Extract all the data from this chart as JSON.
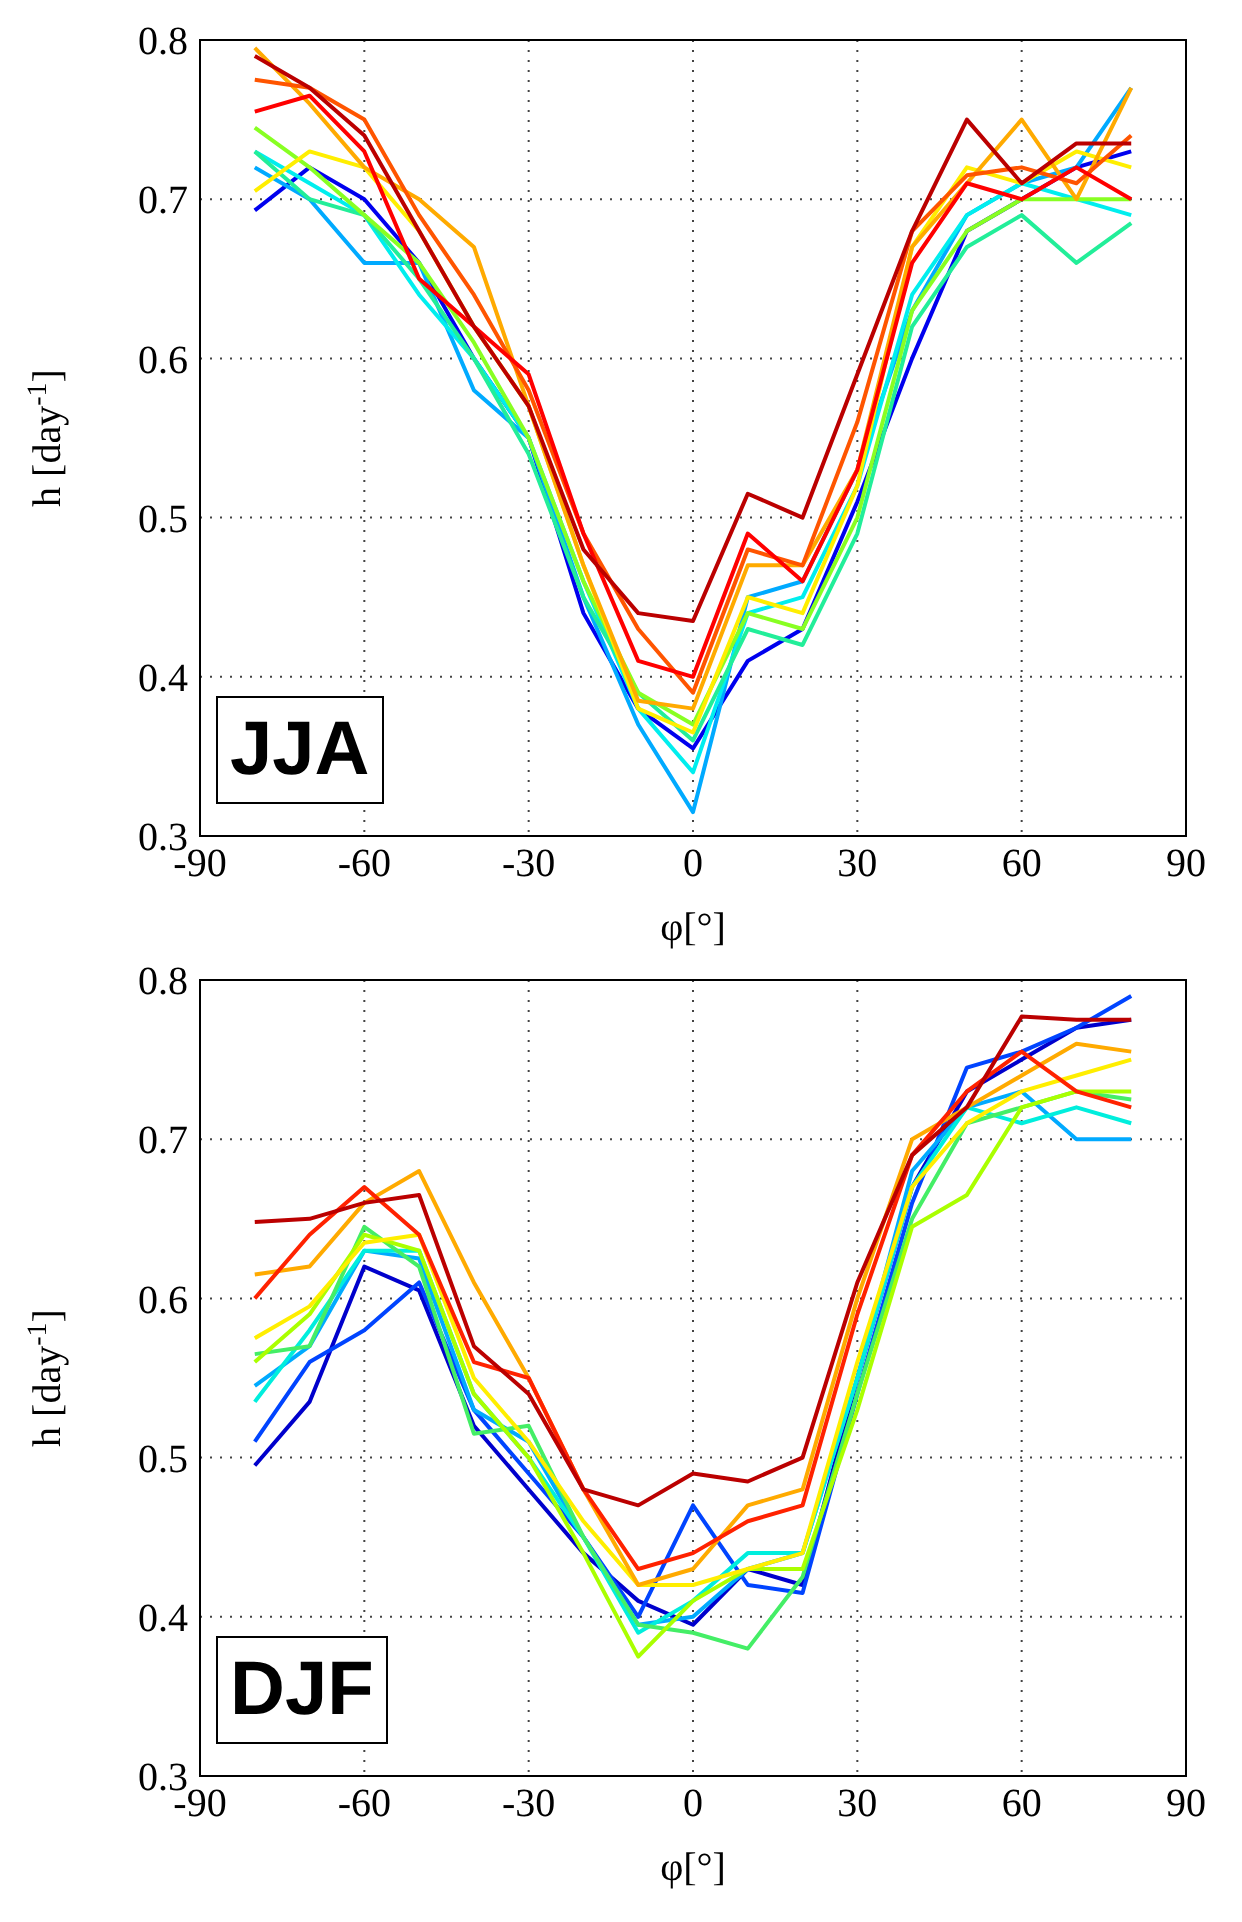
{
  "chart_data": [
    {
      "type": "line",
      "xlabel": "φ[°]",
      "ylabel": "h [day$^{-1}$]",
      "annotations": [
        "JJA"
      ],
      "grid": true,
      "xlim": [
        -90,
        90
      ],
      "xticks": [
        -90,
        -60,
        -30,
        0,
        30,
        60,
        90
      ],
      "ylim": [
        0.3,
        0.8
      ],
      "yticks": [
        0.3,
        0.4,
        0.5,
        0.6,
        0.7,
        0.8
      ],
      "x": [
        -80,
        -70,
        -60,
        -50,
        -40,
        -30,
        -20,
        -10,
        0,
        10,
        20,
        30,
        40,
        50,
        60,
        70,
        80
      ],
      "series": [
        {
          "color": "#0000ee",
          "values": [
            0.693,
            0.72,
            0.7,
            0.66,
            0.6,
            0.55,
            0.44,
            0.38,
            0.355,
            0.41,
            0.43,
            0.51,
            0.6,
            0.68,
            0.7,
            0.72,
            0.73
          ]
        },
        {
          "color": "#00aaff",
          "values": [
            0.72,
            0.7,
            0.66,
            0.66,
            0.58,
            0.55,
            0.45,
            0.37,
            0.315,
            0.45,
            0.46,
            0.53,
            0.63,
            0.69,
            0.71,
            0.72,
            0.77
          ]
        },
        {
          "color": "#00eeee",
          "values": [
            0.73,
            0.71,
            0.69,
            0.64,
            0.6,
            0.55,
            0.46,
            0.38,
            0.34,
            0.44,
            0.45,
            0.52,
            0.64,
            0.69,
            0.71,
            0.7,
            0.69
          ]
        },
        {
          "color": "#22ee99",
          "values": [
            0.73,
            0.7,
            0.69,
            0.65,
            0.6,
            0.54,
            0.45,
            0.39,
            0.36,
            0.43,
            0.42,
            0.49,
            0.62,
            0.67,
            0.69,
            0.66,
            0.685
          ]
        },
        {
          "color": "#88ff22",
          "values": [
            0.745,
            0.72,
            0.69,
            0.66,
            0.61,
            0.55,
            0.46,
            0.39,
            0.37,
            0.44,
            0.43,
            0.5,
            0.63,
            0.68,
            0.7,
            0.7,
            0.7
          ]
        },
        {
          "color": "#ffee00",
          "values": [
            0.705,
            0.73,
            0.72,
            0.68,
            0.62,
            0.57,
            0.47,
            0.38,
            0.365,
            0.45,
            0.44,
            0.52,
            0.67,
            0.72,
            0.71,
            0.73,
            0.72
          ]
        },
        {
          "color": "#ffaa00",
          "values": [
            0.795,
            0.76,
            0.72,
            0.7,
            0.67,
            0.57,
            0.47,
            0.385,
            0.38,
            0.47,
            0.47,
            0.53,
            0.67,
            0.71,
            0.75,
            0.7,
            0.77
          ]
        },
        {
          "color": "#ff5500",
          "values": [
            0.775,
            0.77,
            0.75,
            0.69,
            0.64,
            0.58,
            0.49,
            0.43,
            0.39,
            0.48,
            0.47,
            0.56,
            0.68,
            0.715,
            0.72,
            0.71,
            0.74
          ]
        },
        {
          "color": "#ff0000",
          "values": [
            0.755,
            0.765,
            0.73,
            0.65,
            0.62,
            0.59,
            0.49,
            0.41,
            0.4,
            0.49,
            0.46,
            0.53,
            0.66,
            0.71,
            0.7,
            0.72,
            0.7
          ]
        },
        {
          "color": "#bb0000",
          "values": [
            0.79,
            0.77,
            0.74,
            0.68,
            0.62,
            0.57,
            0.48,
            0.44,
            0.435,
            0.515,
            0.5,
            0.59,
            0.68,
            0.75,
            0.71,
            0.735,
            0.735
          ]
        }
      ]
    },
    {
      "type": "line",
      "xlabel": "φ[°]",
      "ylabel": "h [day$^{-1}$]",
      "annotations": [
        "DJF"
      ],
      "grid": true,
      "xlim": [
        -90,
        90
      ],
      "xticks": [
        -90,
        -60,
        -30,
        0,
        30,
        60,
        90
      ],
      "ylim": [
        0.3,
        0.8
      ],
      "yticks": [
        0.3,
        0.4,
        0.5,
        0.6,
        0.7,
        0.8
      ],
      "x": [
        -80,
        -70,
        -60,
        -50,
        -40,
        -30,
        -20,
        -10,
        0,
        10,
        20,
        30,
        40,
        50,
        60,
        70,
        80
      ],
      "series": [
        {
          "color": "#0000cc",
          "values": [
            0.495,
            0.535,
            0.62,
            0.605,
            0.52,
            0.48,
            0.44,
            0.41,
            0.395,
            0.43,
            0.42,
            0.55,
            0.67,
            0.73,
            0.75,
            0.77,
            0.775
          ]
        },
        {
          "color": "#0044ff",
          "values": [
            0.51,
            0.56,
            0.58,
            0.61,
            0.53,
            0.49,
            0.45,
            0.4,
            0.47,
            0.42,
            0.415,
            0.54,
            0.66,
            0.745,
            0.755,
            0.77,
            0.79
          ]
        },
        {
          "color": "#00aaff",
          "values": [
            0.545,
            0.57,
            0.63,
            0.625,
            0.53,
            0.51,
            0.45,
            0.395,
            0.4,
            0.43,
            0.44,
            0.55,
            0.68,
            0.72,
            0.73,
            0.7,
            0.7
          ]
        },
        {
          "color": "#00eedd",
          "values": [
            0.535,
            0.58,
            0.63,
            0.63,
            0.54,
            0.5,
            0.45,
            0.39,
            0.41,
            0.44,
            0.44,
            0.55,
            0.67,
            0.72,
            0.71,
            0.72,
            0.71
          ]
        },
        {
          "color": "#44ee66",
          "values": [
            0.565,
            0.57,
            0.645,
            0.62,
            0.515,
            0.52,
            0.45,
            0.395,
            0.39,
            0.38,
            0.425,
            0.54,
            0.65,
            0.71,
            0.72,
            0.73,
            0.725
          ]
        },
        {
          "color": "#aaff00",
          "values": [
            0.56,
            0.59,
            0.64,
            0.63,
            0.54,
            0.5,
            0.44,
            0.375,
            0.41,
            0.43,
            0.43,
            0.53,
            0.645,
            0.665,
            0.72,
            0.73,
            0.73
          ]
        },
        {
          "color": "#ffee00",
          "values": [
            0.575,
            0.595,
            0.635,
            0.64,
            0.55,
            0.51,
            0.46,
            0.42,
            0.42,
            0.43,
            0.44,
            0.56,
            0.67,
            0.71,
            0.73,
            0.74,
            0.75
          ]
        },
        {
          "color": "#ffaa00",
          "values": [
            0.615,
            0.62,
            0.66,
            0.68,
            0.61,
            0.55,
            0.48,
            0.42,
            0.43,
            0.47,
            0.48,
            0.6,
            0.7,
            0.72,
            0.74,
            0.76,
            0.755
          ]
        },
        {
          "color": "#ff2200",
          "values": [
            0.6,
            0.64,
            0.67,
            0.64,
            0.56,
            0.55,
            0.48,
            0.43,
            0.44,
            0.46,
            0.47,
            0.59,
            0.69,
            0.73,
            0.755,
            0.73,
            0.72
          ]
        },
        {
          "color": "#bb0000",
          "values": [
            0.648,
            0.65,
            0.66,
            0.665,
            0.57,
            0.54,
            0.48,
            0.47,
            0.49,
            0.485,
            0.5,
            0.61,
            0.69,
            0.72,
            0.777,
            0.775,
            0.775
          ]
        }
      ]
    }
  ]
}
